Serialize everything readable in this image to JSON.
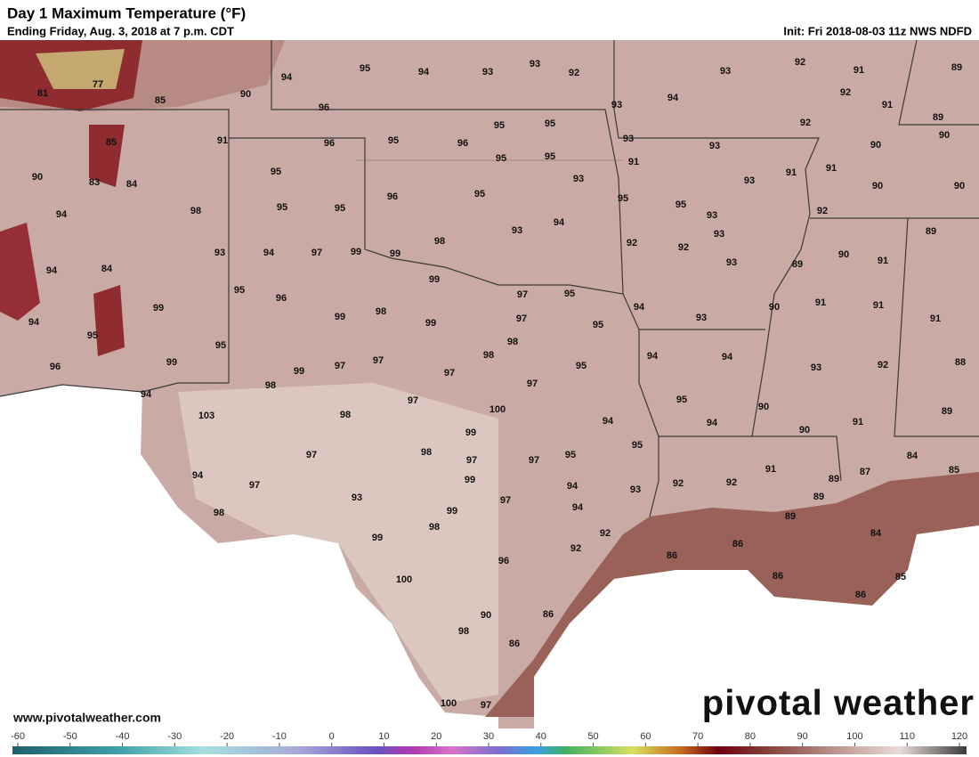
{
  "header": {
    "title": "Day 1 Maximum Temperature (°F)",
    "subtitle": "Ending Friday, Aug. 3, 2018 at 7 p.m. CDT",
    "init": "Init: Fri 2018-08-03 11z NWS NDFD"
  },
  "map": {
    "temperatures": [
      81,
      77,
      85,
      90,
      94,
      95,
      94,
      93,
      93,
      92,
      93,
      92,
      91,
      89,
      96,
      93,
      94,
      92,
      91,
      89,
      85,
      91,
      96,
      95,
      96,
      95,
      95,
      95,
      95,
      93,
      93,
      92,
      90,
      90,
      90,
      83,
      84,
      95,
      93,
      91,
      91,
      93,
      91,
      90,
      90,
      94,
      98,
      95,
      95,
      96,
      95,
      94,
      95,
      95,
      93,
      92,
      94,
      84,
      93,
      94,
      97,
      99,
      99,
      98,
      93,
      92,
      92,
      93,
      93,
      89,
      90,
      91,
      89,
      95,
      96,
      99,
      97,
      95,
      94,
      90,
      91,
      91,
      94,
      99,
      99,
      98,
      99,
      97,
      95,
      93,
      91,
      95,
      95,
      98,
      98,
      94,
      94,
      93,
      92,
      88,
      96,
      99,
      99,
      97,
      97,
      97,
      95,
      94,
      98,
      97,
      97,
      95,
      90,
      91,
      89,
      103,
      98,
      100,
      94,
      94,
      90,
      99,
      98,
      97,
      97,
      95,
      95,
      97,
      94,
      97,
      99,
      94,
      93,
      92,
      92,
      91,
      89,
      87,
      84,
      85,
      93,
      97,
      94,
      89,
      98,
      99,
      98,
      92,
      89,
      84,
      99,
      92,
      86,
      86,
      96,
      100,
      86,
      85,
      86,
      90,
      86,
      98,
      86,
      100,
      97
    ]
  },
  "colorbar": {
    "ticks": [
      -60,
      -50,
      -40,
      -30,
      -20,
      -10,
      0,
      10,
      20,
      30,
      40,
      50,
      60,
      70,
      80,
      90,
      100,
      110,
      120
    ]
  },
  "footer": {
    "url": "www.pivotalweather.com",
    "brand": "pivotal weather"
  }
}
